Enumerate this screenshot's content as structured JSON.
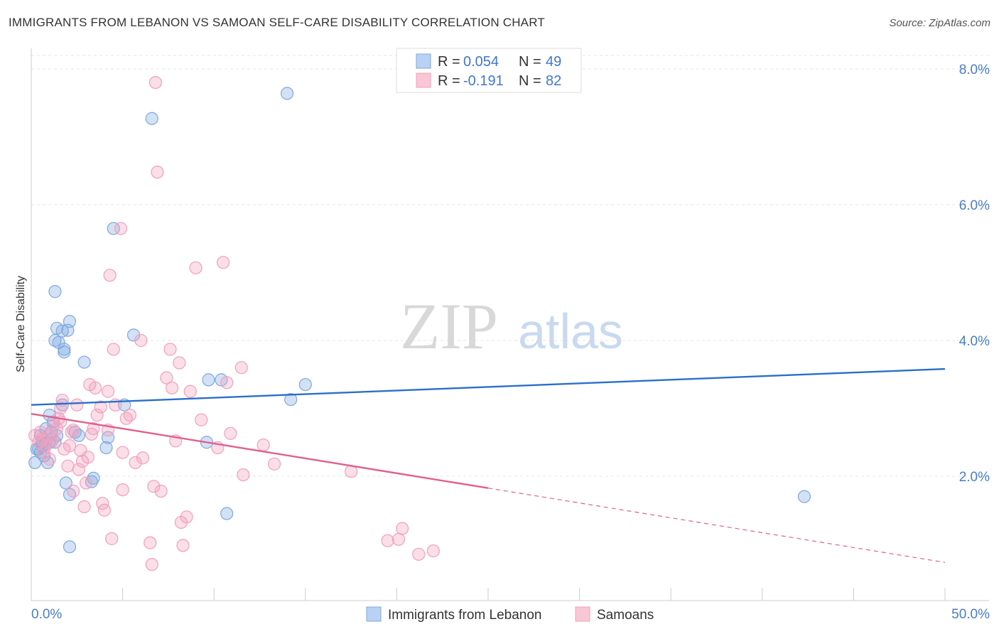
{
  "title": "IMMIGRANTS FROM LEBANON VS SAMOAN SELF-CARE DISABILITY CORRELATION CHART",
  "source": "Source: ZipAtlas.com",
  "watermark": {
    "part1": "ZIP",
    "part2": "atlas"
  },
  "legend": {
    "r_label": "R =",
    "n_label": "N =",
    "rows": [
      {
        "r": "0.054",
        "n": "49"
      },
      {
        "r": "-0.191",
        "n": "82"
      }
    ]
  },
  "chart_data": {
    "type": "scatter",
    "xlabel": "",
    "ylabel": "Self-Care Disability",
    "xlim": [
      0,
      50
    ],
    "ylim": [
      0,
      8.5
    ],
    "x_tick_labels": {
      "min": "0.0%",
      "max": "50.0%"
    },
    "y_ticks": [
      {
        "value": 2.0,
        "label": "2.0%"
      },
      {
        "value": 4.0,
        "label": "4.0%"
      },
      {
        "value": 6.0,
        "label": "6.0%"
      },
      {
        "value": 8.0,
        "label": "8.0%"
      }
    ],
    "grid": true,
    "legend_position": "top-center",
    "series": [
      {
        "name": "Immigrants from Lebanon",
        "color": "#7fa8e0",
        "line_color": "#2a6fcc",
        "trend": {
          "x0": 0,
          "y0": 3.05,
          "x1": 50,
          "y1": 3.58,
          "solid_until": 50
        },
        "points": [
          [
            0.2,
            2.2
          ],
          [
            0.3,
            2.4
          ],
          [
            0.4,
            2.4
          ],
          [
            0.5,
            2.6
          ],
          [
            0.5,
            2.35
          ],
          [
            0.6,
            2.45
          ],
          [
            0.7,
            2.3
          ],
          [
            0.8,
            2.7
          ],
          [
            0.9,
            2.2
          ],
          [
            1.0,
            2.5
          ],
          [
            1.1,
            2.65
          ],
          [
            1.2,
            2.8
          ],
          [
            1.3,
            2.5
          ],
          [
            1.4,
            2.6
          ],
          [
            1.3,
            4.0
          ],
          [
            1.3,
            4.72
          ],
          [
            1.4,
            4.18
          ],
          [
            1.5,
            3.97
          ],
          [
            1.7,
            4.14
          ],
          [
            1.7,
            3.05
          ],
          [
            1.8,
            3.87
          ],
          [
            1.8,
            3.83
          ],
          [
            2.0,
            4.15
          ],
          [
            2.1,
            4.28
          ],
          [
            1.9,
            1.9
          ],
          [
            2.1,
            1.73
          ],
          [
            2.1,
            0.96
          ],
          [
            2.4,
            2.65
          ],
          [
            2.6,
            2.6
          ],
          [
            2.9,
            3.68
          ],
          [
            3.3,
            1.92
          ],
          [
            3.4,
            1.97
          ],
          [
            4.1,
            2.42
          ],
          [
            4.2,
            2.57
          ],
          [
            4.5,
            5.65
          ],
          [
            5.1,
            3.05
          ],
          [
            5.6,
            4.08
          ],
          [
            6.6,
            7.27
          ],
          [
            9.6,
            2.5
          ],
          [
            9.7,
            3.42
          ],
          [
            10.4,
            3.42
          ],
          [
            10.7,
            1.45
          ],
          [
            14.2,
            3.13
          ],
          [
            14.0,
            7.64
          ],
          [
            15.0,
            3.35
          ],
          [
            42.3,
            1.7
          ],
          [
            1.0,
            2.9
          ],
          [
            0.8,
            2.48
          ],
          [
            0.6,
            2.5
          ]
        ]
      },
      {
        "name": "Samoans",
        "color": "#f2a0bc",
        "line_color": "#e0608d",
        "trend": {
          "x0": 0,
          "y0": 2.92,
          "x1": 50,
          "y1": 0.73,
          "solid_until": 25
        },
        "points": [
          [
            0.2,
            2.6
          ],
          [
            0.4,
            2.5
          ],
          [
            0.5,
            2.65
          ],
          [
            0.6,
            2.55
          ],
          [
            0.8,
            2.45
          ],
          [
            0.9,
            2.6
          ],
          [
            1.0,
            2.25
          ],
          [
            1.1,
            2.5
          ],
          [
            1.2,
            2.55
          ],
          [
            1.4,
            2.7
          ],
          [
            1.5,
            2.85
          ],
          [
            1.6,
            2.8
          ],
          [
            1.7,
            3.12
          ],
          [
            1.8,
            2.4
          ],
          [
            2.0,
            2.15
          ],
          [
            2.1,
            2.45
          ],
          [
            2.2,
            2.65
          ],
          [
            2.3,
            2.68
          ],
          [
            2.3,
            1.78
          ],
          [
            2.5,
            3.05
          ],
          [
            2.7,
            2.38
          ],
          [
            2.8,
            2.22
          ],
          [
            2.9,
            1.55
          ],
          [
            3.0,
            1.9
          ],
          [
            3.1,
            2.28
          ],
          [
            3.2,
            3.35
          ],
          [
            3.3,
            2.62
          ],
          [
            3.4,
            2.7
          ],
          [
            3.5,
            3.3
          ],
          [
            3.6,
            2.9
          ],
          [
            3.8,
            3.02
          ],
          [
            3.9,
            1.6
          ],
          [
            4.0,
            1.5
          ],
          [
            4.2,
            2.68
          ],
          [
            4.2,
            3.25
          ],
          [
            4.3,
            4.96
          ],
          [
            4.4,
            1.08
          ],
          [
            4.5,
            3.87
          ],
          [
            4.6,
            3.05
          ],
          [
            4.9,
            5.65
          ],
          [
            5.0,
            2.35
          ],
          [
            5.0,
            1.8
          ],
          [
            5.2,
            2.85
          ],
          [
            5.4,
            2.9
          ],
          [
            5.7,
            2.2
          ],
          [
            6.0,
            4.0
          ],
          [
            6.1,
            2.27
          ],
          [
            6.5,
            1.02
          ],
          [
            6.6,
            0.7
          ],
          [
            6.7,
            1.85
          ],
          [
            6.8,
            7.8
          ],
          [
            6.9,
            6.48
          ],
          [
            7.1,
            1.78
          ],
          [
            7.4,
            3.45
          ],
          [
            7.6,
            3.87
          ],
          [
            7.7,
            3.3
          ],
          [
            7.9,
            2.52
          ],
          [
            8.1,
            3.67
          ],
          [
            8.3,
            0.98
          ],
          [
            8.5,
            1.4
          ],
          [
            8.7,
            3.25
          ],
          [
            9.0,
            5.07
          ],
          [
            9.3,
            2.83
          ],
          [
            10.2,
            2.42
          ],
          [
            10.5,
            5.15
          ],
          [
            10.7,
            3.38
          ],
          [
            10.9,
            2.63
          ],
          [
            11.5,
            3.6
          ],
          [
            11.6,
            2.02
          ],
          [
            12.7,
            2.46
          ],
          [
            13.3,
            2.18
          ],
          [
            17.5,
            2.07
          ],
          [
            19.5,
            1.05
          ],
          [
            20.1,
            1.07
          ],
          [
            20.3,
            1.23
          ],
          [
            21.2,
            0.85
          ],
          [
            22.0,
            0.9
          ],
          [
            1.2,
            2.75
          ],
          [
            0.7,
            2.35
          ],
          [
            1.6,
            3.0
          ],
          [
            2.6,
            2.1
          ],
          [
            8.2,
            1.32
          ]
        ]
      }
    ]
  }
}
